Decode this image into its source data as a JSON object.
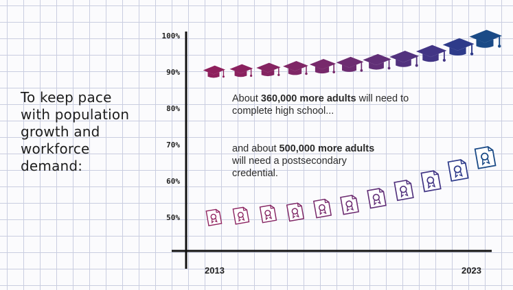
{
  "headline": {
    "lines": [
      "To keep pace",
      "with population",
      "growth and",
      "workforce",
      "demand:"
    ]
  },
  "annotations": {
    "high_school": {
      "pre": "About ",
      "bold": "360,000 more adults",
      "post_line1": " will need to",
      "line2": "complete high school..."
    },
    "postsecondary": {
      "pre": "and about ",
      "bold": "500,000 more adults",
      "line2": "will need a postsecondary",
      "line3": "credential."
    }
  },
  "chart_data": {
    "type": "scatter",
    "x": [
      2013,
      2014,
      2015,
      2016,
      2017,
      2018,
      2019,
      2020,
      2021,
      2022,
      2023
    ],
    "xlim": [
      2013,
      2023
    ],
    "ylim": [
      40,
      100
    ],
    "y_ticks": [
      100,
      90,
      80,
      70,
      60,
      50
    ],
    "y_tick_labels": [
      "100%",
      "90%",
      "80%",
      "70%",
      "60%",
      "50%"
    ],
    "x_tick_labels": [
      "2013",
      "2023"
    ],
    "series": [
      {
        "marker": "graduation-cap",
        "values": [
          90,
          90.3,
          90.6,
          91,
          91.5,
          92,
          92.7,
          93.5,
          95,
          96.8,
          99
        ],
        "colors": [
          "#8e1f5c",
          "#8a215f",
          "#852462",
          "#7f2766",
          "#77296b",
          "#6d2c71",
          "#612f77",
          "#52327e",
          "#423585",
          "#2e3b8a",
          "#1a4a86"
        ]
      },
      {
        "marker": "certificate",
        "values": [
          50,
          50.5,
          51,
          51.5,
          52.5,
          53.5,
          55.3,
          57.5,
          60,
          63,
          66.5
        ],
        "colors": [
          "#8e1f5c",
          "#8a215f",
          "#852462",
          "#7f2766",
          "#77296b",
          "#6d2c71",
          "#612f77",
          "#52327e",
          "#423585",
          "#2e3b8a",
          "#1a4a86"
        ]
      }
    ],
    "grid": true
  }
}
